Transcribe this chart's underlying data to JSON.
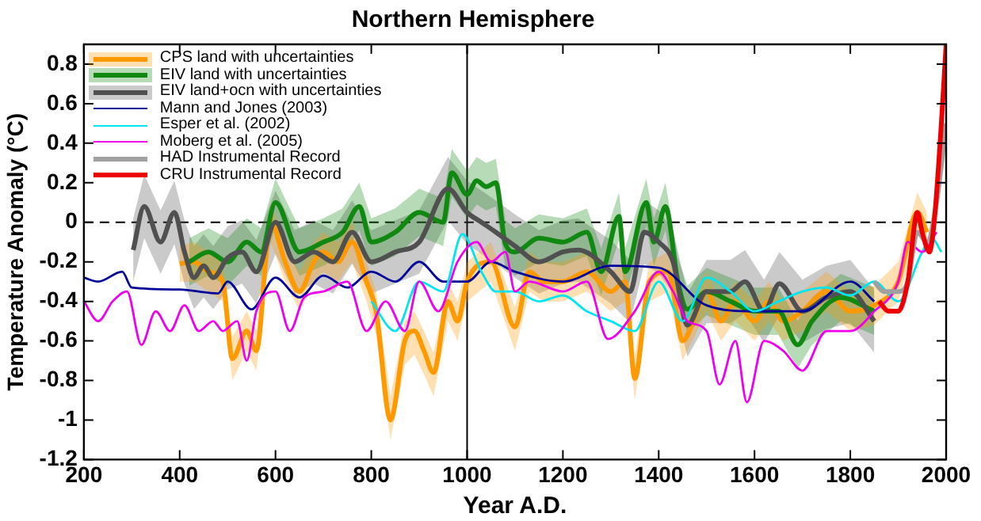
{
  "chart_data": {
    "type": "line",
    "title": "Northern Hemisphere",
    "xlabel": "Year A.D.",
    "ylabel": "Temperature Anomaly (°C)",
    "xlim": [
      200,
      2000
    ],
    "xticks": [
      200,
      400,
      600,
      800,
      1000,
      1200,
      1400,
      1600,
      1800,
      2000
    ],
    "ylim": [
      -1.2,
      0.9
    ],
    "yticks": [
      -1.2,
      -1,
      -0.8,
      -0.6,
      -0.4,
      -0.2,
      0,
      0.2,
      0.4,
      0.6,
      0.8
    ],
    "grid": false,
    "legend": "top left",
    "marker": "none",
    "ref_lines": [
      {
        "axis": "y",
        "value": 0,
        "color": "#000000",
        "line_style": "dashed"
      },
      {
        "axis": "x",
        "value": 1000,
        "color": "#000000",
        "line_style": "solid"
      }
    ],
    "series": [
      {
        "name": "CPS land with uncertainties",
        "color": "#ff9900",
        "x": [
          400,
          430,
          460,
          490,
          510,
          540,
          560,
          590,
          620,
          650,
          680,
          700,
          730,
          760,
          790,
          810,
          840,
          870,
          890,
          910,
          930,
          960,
          980,
          1000,
          1050,
          1100,
          1130,
          1160,
          1200,
          1250,
          1300,
          1330,
          1350,
          1380,
          1420,
          1450,
          1480,
          1500,
          1530,
          1560,
          1600,
          1630,
          1660,
          1700,
          1750,
          1800,
          1850,
          1900,
          1940,
          1960
        ],
        "values": [
          -0.21,
          -0.2,
          -0.25,
          -0.3,
          -0.69,
          -0.55,
          -0.65,
          0.0,
          -0.2,
          -0.35,
          -0.2,
          -0.15,
          -0.2,
          -0.1,
          -0.3,
          -0.45,
          -1.0,
          -0.6,
          -0.55,
          -0.65,
          -0.76,
          -0.4,
          -0.5,
          -0.3,
          -0.2,
          -0.53,
          -0.25,
          -0.3,
          -0.3,
          -0.25,
          -0.35,
          -0.3,
          -0.79,
          -0.3,
          -0.25,
          -0.6,
          -0.45,
          -0.35,
          -0.5,
          -0.4,
          -0.5,
          -0.4,
          -0.5,
          -0.45,
          -0.35,
          -0.45,
          -0.42,
          -0.3,
          0.05,
          -0.05
        ],
        "lower": [
          -0.3,
          -0.3,
          -0.35,
          -0.4,
          -0.8,
          -0.65,
          -0.75,
          -0.1,
          -0.3,
          -0.45,
          -0.3,
          -0.25,
          -0.3,
          -0.2,
          -0.4,
          -0.57,
          -1.1,
          -0.72,
          -0.67,
          -0.77,
          -0.88,
          -0.5,
          -0.6,
          -0.4,
          -0.3,
          -0.65,
          -0.35,
          -0.4,
          -0.4,
          -0.35,
          -0.45,
          -0.4,
          -0.9,
          -0.4,
          -0.35,
          -0.7,
          -0.55,
          -0.45,
          -0.6,
          -0.5,
          -0.6,
          -0.5,
          -0.6,
          -0.55,
          -0.45,
          -0.55,
          -0.52,
          -0.4,
          -0.05,
          -0.15
        ],
        "upper": [
          -0.12,
          -0.1,
          -0.15,
          -0.2,
          -0.58,
          -0.45,
          -0.55,
          0.1,
          -0.1,
          -0.25,
          -0.1,
          -0.05,
          -0.1,
          0.0,
          -0.2,
          -0.35,
          -0.88,
          -0.5,
          -0.45,
          -0.55,
          -0.66,
          -0.3,
          -0.4,
          -0.2,
          -0.1,
          -0.43,
          -0.15,
          -0.2,
          -0.2,
          -0.15,
          -0.25,
          -0.2,
          -0.68,
          -0.2,
          -0.15,
          -0.5,
          -0.35,
          -0.25,
          -0.4,
          -0.3,
          -0.4,
          -0.3,
          -0.4,
          -0.35,
          -0.25,
          -0.35,
          -0.32,
          -0.2,
          0.15,
          0.05
        ]
      },
      {
        "name": "EIV land with uncertainties",
        "color": "#118811",
        "x": [
          420,
          460,
          500,
          540,
          570,
          600,
          650,
          700,
          740,
          775,
          800,
          850,
          900,
          950,
          968,
          1000,
          1020,
          1040,
          1060,
          1080,
          1100,
          1150,
          1200,
          1250,
          1280,
          1317,
          1330,
          1374,
          1390,
          1414,
          1440,
          1460,
          1500,
          1550,
          1600,
          1650,
          1690,
          1720,
          1780,
          1850
        ],
        "values": [
          -0.2,
          -0.15,
          -0.2,
          -0.1,
          -0.15,
          0.1,
          -0.15,
          -0.1,
          -0.05,
          0.08,
          -0.1,
          -0.05,
          0.05,
          0.0,
          0.25,
          0.14,
          0.21,
          0.18,
          0.2,
          -0.11,
          -0.15,
          -0.08,
          -0.1,
          -0.05,
          -0.25,
          0.03,
          -0.25,
          0.1,
          -0.1,
          0.08,
          -0.3,
          -0.44,
          -0.35,
          -0.4,
          -0.45,
          -0.45,
          -0.62,
          -0.5,
          -0.38,
          -0.45
        ],
        "lower": [
          -0.32,
          -0.27,
          -0.32,
          -0.22,
          -0.27,
          -0.02,
          -0.27,
          -0.22,
          -0.17,
          -0.04,
          -0.22,
          -0.17,
          -0.07,
          -0.12,
          0.13,
          0.02,
          0.09,
          0.06,
          0.08,
          -0.23,
          -0.27,
          -0.2,
          -0.22,
          -0.17,
          -0.37,
          -0.09,
          -0.37,
          -0.02,
          -0.22,
          -0.04,
          -0.42,
          -0.56,
          -0.47,
          -0.52,
          -0.57,
          -0.57,
          -0.74,
          -0.62,
          -0.5,
          -0.57
        ],
        "upper": [
          -0.08,
          -0.03,
          -0.08,
          0.02,
          -0.03,
          0.22,
          -0.03,
          0.02,
          0.07,
          0.2,
          0.02,
          0.07,
          0.17,
          0.12,
          0.37,
          0.26,
          0.33,
          0.3,
          0.32,
          0.01,
          -0.03,
          0.04,
          0.02,
          0.07,
          -0.13,
          0.15,
          -0.13,
          0.22,
          0.02,
          0.2,
          -0.18,
          -0.32,
          -0.23,
          -0.28,
          -0.33,
          -0.33,
          -0.5,
          -0.38,
          -0.26,
          -0.33
        ]
      },
      {
        "name": "EIV land+ocn with uncertainties",
        "color": "#505050",
        "x": [
          303,
          326,
          360,
          389,
          410,
          430,
          450,
          470,
          500,
          530,
          560,
          600,
          640,
          680,
          720,
          760,
          800,
          850,
          900,
          960,
          1000,
          1030,
          1060,
          1100,
          1150,
          1200,
          1232,
          1300,
          1340,
          1370,
          1400,
          1430,
          1460,
          1500,
          1550,
          1580,
          1620,
          1652,
          1700,
          1750,
          1800,
          1850
        ],
        "values": [
          -0.14,
          0.08,
          -0.1,
          0.05,
          -0.15,
          -0.28,
          -0.22,
          -0.28,
          -0.18,
          -0.15,
          -0.25,
          0.0,
          -0.2,
          -0.15,
          -0.2,
          -0.05,
          -0.2,
          -0.15,
          -0.1,
          0.17,
          0.05,
          0.0,
          -0.05,
          -0.12,
          -0.2,
          -0.15,
          -0.14,
          -0.25,
          -0.35,
          -0.05,
          -0.1,
          -0.2,
          -0.52,
          -0.35,
          -0.35,
          -0.3,
          -0.45,
          -0.31,
          -0.45,
          -0.38,
          -0.35,
          -0.5
        ],
        "lower": [
          -0.3,
          -0.08,
          -0.26,
          -0.11,
          -0.31,
          -0.44,
          -0.38,
          -0.44,
          -0.34,
          -0.31,
          -0.41,
          -0.16,
          -0.36,
          -0.31,
          -0.36,
          -0.21,
          -0.36,
          -0.31,
          -0.26,
          0.01,
          -0.11,
          -0.16,
          -0.21,
          -0.28,
          -0.36,
          -0.31,
          -0.3,
          -0.41,
          -0.51,
          -0.21,
          -0.26,
          -0.36,
          -0.68,
          -0.51,
          -0.51,
          -0.46,
          -0.61,
          -0.47,
          -0.61,
          -0.54,
          -0.51,
          -0.66
        ],
        "upper": [
          0.02,
          0.24,
          0.06,
          0.21,
          0.01,
          -0.12,
          -0.06,
          -0.12,
          -0.02,
          0.01,
          -0.09,
          0.16,
          -0.04,
          0.01,
          -0.04,
          0.11,
          -0.04,
          0.01,
          0.06,
          0.33,
          0.21,
          0.16,
          0.11,
          0.04,
          -0.04,
          0.01,
          0.02,
          -0.09,
          -0.19,
          0.11,
          0.06,
          -0.04,
          -0.36,
          -0.19,
          -0.19,
          -0.14,
          -0.29,
          -0.15,
          -0.29,
          -0.22,
          -0.19,
          -0.34
        ]
      },
      {
        "name": "Mann and Jones (2003)",
        "color": "#000099",
        "x": [
          200,
          230,
          280,
          300,
          400,
          480,
          500,
          550,
          600,
          650,
          700,
          750,
          800,
          850,
          900,
          950,
          1000,
          1050,
          1100,
          1200,
          1300,
          1400,
          1500,
          1600,
          1700,
          1800,
          1850
        ],
        "values": [
          -0.28,
          -0.3,
          -0.25,
          -0.33,
          -0.34,
          -0.36,
          -0.3,
          -0.44,
          -0.28,
          -0.38,
          -0.27,
          -0.33,
          -0.25,
          -0.3,
          -0.2,
          -0.3,
          -0.3,
          -0.2,
          -0.25,
          -0.3,
          -0.22,
          -0.23,
          -0.42,
          -0.45,
          -0.45,
          -0.3,
          -0.4
        ]
      },
      {
        "name": "Esper et al. (2002)",
        "color": "#00e5ee",
        "x": [
          800,
          850,
          900,
          950,
          990,
          1030,
          1060,
          1100,
          1150,
          1200,
          1250,
          1300,
          1350,
          1400,
          1450,
          1500,
          1550,
          1600,
          1650,
          1700,
          1750,
          1800,
          1850,
          1900,
          1950,
          1970,
          1990
        ],
        "values": [
          -0.4,
          -0.55,
          -0.3,
          -0.35,
          -0.06,
          -0.25,
          -0.35,
          -0.35,
          -0.4,
          -0.37,
          -0.45,
          -0.5,
          -0.55,
          -0.3,
          -0.5,
          -0.28,
          -0.35,
          -0.45,
          -0.4,
          -0.35,
          -0.33,
          -0.37,
          -0.3,
          -0.4,
          -0.15,
          -0.08,
          -0.15
        ]
      },
      {
        "name": "Moberg et al. (2005)",
        "color": "#ee00ee",
        "x": [
          200,
          230,
          260,
          290,
          320,
          350,
          380,
          410,
          440,
          470,
          490,
          520,
          540,
          560,
          600,
          630,
          660,
          700,
          750,
          790,
          830,
          870,
          900,
          940,
          980,
          1020,
          1050,
          1080,
          1100,
          1130,
          1200,
          1250,
          1294,
          1350,
          1400,
          1430,
          1460,
          1500,
          1527,
          1560,
          1584,
          1620,
          1660,
          1700,
          1750,
          1800,
          1850,
          1900,
          1920,
          1950,
          1980
        ],
        "values": [
          -0.4,
          -0.5,
          -0.4,
          -0.35,
          -0.62,
          -0.45,
          -0.55,
          -0.42,
          -0.55,
          -0.5,
          -0.55,
          -0.5,
          -0.7,
          -0.45,
          -0.35,
          -0.55,
          -0.38,
          -0.35,
          -0.3,
          -0.55,
          -0.4,
          -0.55,
          -0.3,
          -0.45,
          -0.2,
          -0.1,
          -0.2,
          -0.15,
          -0.35,
          -0.3,
          -0.35,
          -0.3,
          -0.59,
          -0.45,
          -0.25,
          -0.35,
          -0.5,
          -0.55,
          -0.82,
          -0.6,
          -0.91,
          -0.6,
          -0.65,
          -0.75,
          -0.55,
          -0.55,
          -0.45,
          -0.3,
          -0.1,
          -0.15,
          -0.05
        ]
      },
      {
        "name": "HAD Instrumental Record",
        "color": "#a0a0a0",
        "x": [
          1850,
          1870,
          1900,
          1920,
          1940,
          1960,
          1980,
          2000
        ],
        "values": [
          -0.3,
          -0.35,
          -0.35,
          -0.3,
          -0.05,
          -0.1,
          0.1,
          0.5
        ]
      },
      {
        "name": "CRU Instrumental Record",
        "color": "#ee0000",
        "x": [
          1860,
          1880,
          1900,
          1920,
          1940,
          1950,
          1965,
          1975,
          1990,
          2000
        ],
        "values": [
          -0.4,
          -0.45,
          -0.45,
          -0.3,
          0.05,
          -0.05,
          -0.15,
          0.0,
          0.5,
          0.9
        ]
      }
    ]
  }
}
